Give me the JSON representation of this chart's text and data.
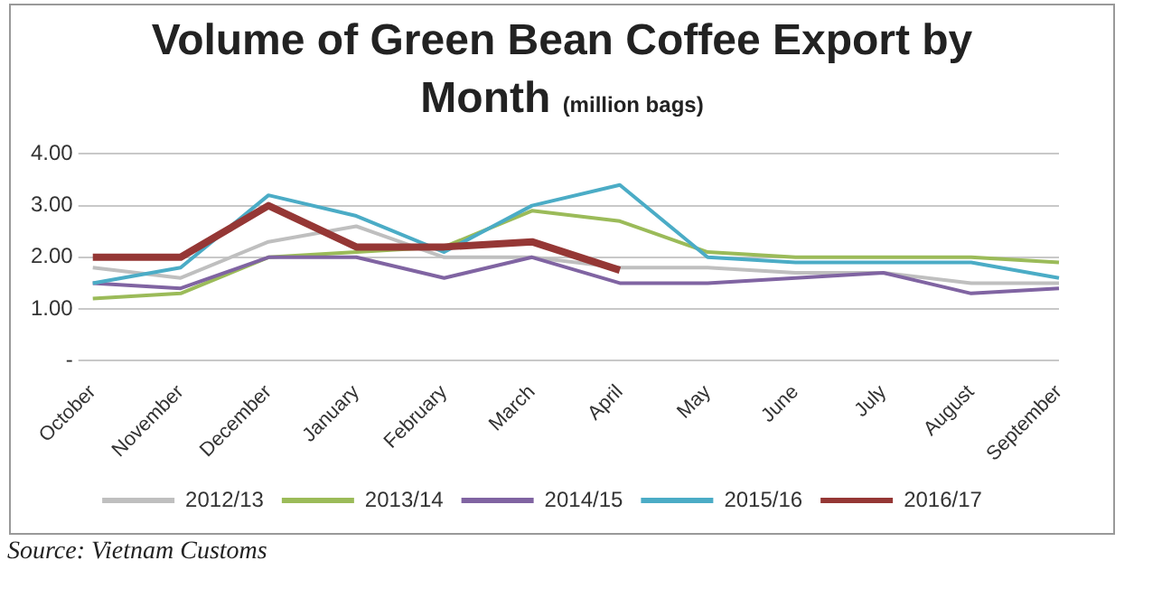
{
  "chart_data": {
    "type": "line",
    "title": "Volume of Green Bean Coffee Export by Month",
    "subtitle": "(million bags)",
    "categories": [
      "October",
      "November",
      "December",
      "January",
      "February",
      "March",
      "April",
      "May",
      "June",
      "July",
      "August",
      "September"
    ],
    "series": [
      {
        "name": "2012/13",
        "color": "#bfbfbf",
        "values": [
          1.8,
          1.6,
          2.3,
          2.6,
          2.0,
          2.0,
          1.8,
          1.8,
          1.7,
          1.7,
          1.5,
          1.5
        ]
      },
      {
        "name": "2013/14",
        "color": "#9bbb59",
        "values": [
          1.2,
          1.3,
          2.0,
          2.1,
          2.2,
          2.9,
          2.7,
          2.1,
          2.0,
          2.0,
          2.0,
          1.9
        ]
      },
      {
        "name": "2014/15",
        "color": "#8064a2",
        "values": [
          1.5,
          1.4,
          2.0,
          2.0,
          1.6,
          2.0,
          1.5,
          1.5,
          1.6,
          1.7,
          1.3,
          1.4
        ]
      },
      {
        "name": "2015/16",
        "color": "#4bacc6",
        "values": [
          1.5,
          1.8,
          3.2,
          2.8,
          2.1,
          3.0,
          3.4,
          2.0,
          1.9,
          1.9,
          1.9,
          1.6
        ]
      },
      {
        "name": "2016/17",
        "color": "#953735",
        "values": [
          2.0,
          2.0,
          3.0,
          2.2,
          2.2,
          2.3,
          1.75,
          null,
          null,
          null,
          null,
          null
        ]
      }
    ],
    "ylim": [
      0,
      4
    ],
    "yticks": [
      {
        "value": 0,
        "label": "-"
      },
      {
        "value": 1,
        "label": "1.00"
      },
      {
        "value": 2,
        "label": "2.00"
      },
      {
        "value": 3,
        "label": "3.00"
      },
      {
        "value": 4,
        "label": "4.00"
      }
    ],
    "grid": "y",
    "legend": "bottom",
    "marker": "none",
    "line_style": "solid",
    "annotations": [
      "Source: Vietnam Customs"
    ]
  }
}
